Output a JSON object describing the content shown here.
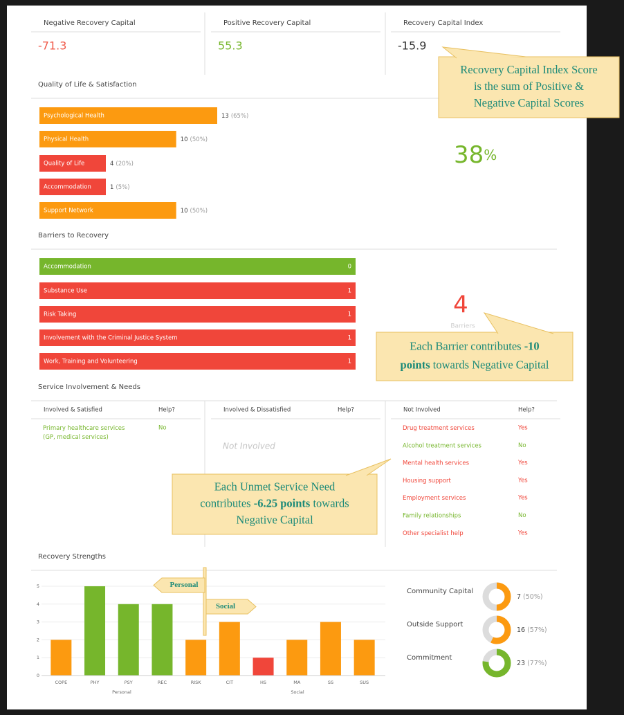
{
  "metrics": [
    {
      "label": "Negative Recovery Capital",
      "value": -71.3,
      "color": "#f05a4a"
    },
    {
      "label": "Positive Recovery Capital",
      "value": 55.3,
      "color": "#76b62c"
    },
    {
      "label": "Recovery Capital Index",
      "value": -15.9,
      "color": "#333333"
    }
  ],
  "callouts": [
    {
      "lines": [
        [
          {
            "text": "Recovery Capital Index Score"
          }
        ],
        [
          {
            "text": "is the sum of Positive &"
          }
        ],
        [
          {
            "text": "Negative Capital Scores"
          }
        ]
      ]
    },
    {
      "lines": [
        [
          {
            "text": "Each Barrier contributes "
          },
          {
            "text": "-10",
            "bold": true
          }
        ],
        [
          {
            "text": "points",
            "bold": true
          },
          {
            "text": " towards Negative Capital"
          }
        ]
      ]
    },
    {
      "lines": [
        [
          {
            "text": "Each Unmet Service Need"
          }
        ],
        [
          {
            "text": "contributes "
          },
          {
            "text": "-6.25 points",
            "bold": true
          },
          {
            "text": " towards"
          }
        ],
        [
          {
            "text": "Negative Capital"
          }
        ]
      ]
    }
  ],
  "quality": {
    "title": "Quality of Life & Satisfaction",
    "items": [
      {
        "label": "Psychological Health",
        "value": 13,
        "percent": "(65%)",
        "color": "#fc9a10"
      },
      {
        "label": "Physical Health",
        "value": 10,
        "percent": "(50%)",
        "color": "#fc9a10"
      },
      {
        "label": "Quality of Life",
        "value": 4,
        "percent": "(20%)",
        "color": "#f0463a"
      },
      {
        "label": "Accommodation",
        "value": 1,
        "percent": "(5%)",
        "color": "#f0463a"
      },
      {
        "label": "Support Network",
        "value": 10,
        "percent": "(50%)",
        "color": "#fc9a10"
      }
    ],
    "score": 38,
    "score_unit": "%"
  },
  "barriers": {
    "title": "Barriers to Recovery",
    "items": [
      {
        "label": "Accommodation",
        "value": 0,
        "color": "#76b62c"
      },
      {
        "label": "Substance Use",
        "value": 1,
        "color": "#f0463a"
      },
      {
        "label": "Risk Taking",
        "value": 1,
        "color": "#f0463a"
      },
      {
        "label": "Involvement with the Criminal Justice System",
        "value": 1,
        "color": "#f0463a"
      },
      {
        "label": "Work, Training and Volunteering",
        "value": 1,
        "color": "#f0463a"
      }
    ],
    "count": 4,
    "count_label": "Barriers"
  },
  "services": {
    "title": "Service Involvement & Needs",
    "columns": [
      {
        "header": "Involved & Satisfied",
        "help_header": "Help?",
        "rows": [
          {
            "service": "Primary healthcare services (GP, medical services)",
            "help": "No",
            "color": "#76b62c"
          }
        ]
      },
      {
        "header": "Involved & Dissatisfied",
        "help_header": "Help?",
        "empty_text": "Not Involved",
        "rows": []
      },
      {
        "header": "Not Involved",
        "help_header": "Help?",
        "rows": [
          {
            "service": "Drug treatment services",
            "help": "Yes",
            "color": "#f0463a"
          },
          {
            "service": "Alcohol treatment services",
            "help": "No",
            "color": "#76b62c"
          },
          {
            "service": "Mental health services",
            "help": "Yes",
            "color": "#f0463a"
          },
          {
            "service": "Housing support",
            "help": "Yes",
            "color": "#f0463a"
          },
          {
            "service": "Employment services",
            "help": "Yes",
            "color": "#f0463a"
          },
          {
            "service": "Family relationships",
            "help": "No",
            "color": "#76b62c"
          },
          {
            "service": "Other specialist help",
            "help": "Yes",
            "color": "#f0463a"
          }
        ]
      }
    ]
  },
  "strengths": {
    "title": "Recovery Strengths",
    "type": "bar",
    "categories": [
      "COPE",
      "PHY",
      "PSY",
      "REC",
      "RISK",
      "CIT",
      "HS",
      "MA",
      "SS",
      "SUS"
    ],
    "values": [
      2,
      5,
      4,
      4,
      2,
      3,
      1,
      2,
      3,
      2
    ],
    "colors": [
      "#fc9a10",
      "#76b62c",
      "#76b62c",
      "#76b62c",
      "#fc9a10",
      "#fc9a10",
      "#f0463a",
      "#fc9a10",
      "#fc9a10",
      "#fc9a10"
    ],
    "ylim": [
      0,
      5
    ],
    "yticks": [
      0,
      1,
      2,
      3,
      4,
      5
    ],
    "grid": true,
    "group_labels": [
      "Personal",
      "Social"
    ],
    "signs": [
      "Personal",
      "Social"
    ]
  },
  "donuts": [
    {
      "label": "Community Capital",
      "value": 7,
      "percent": 50,
      "percent_label": "(50%)",
      "color": "#fc9a10"
    },
    {
      "label": "Outside Support",
      "value": 16,
      "percent": 57,
      "percent_label": "(57%)",
      "color": "#fc9a10"
    },
    {
      "label": "Commitment",
      "value": 23,
      "percent": 77,
      "percent_label": "(77%)",
      "color": "#76b62c"
    }
  ]
}
